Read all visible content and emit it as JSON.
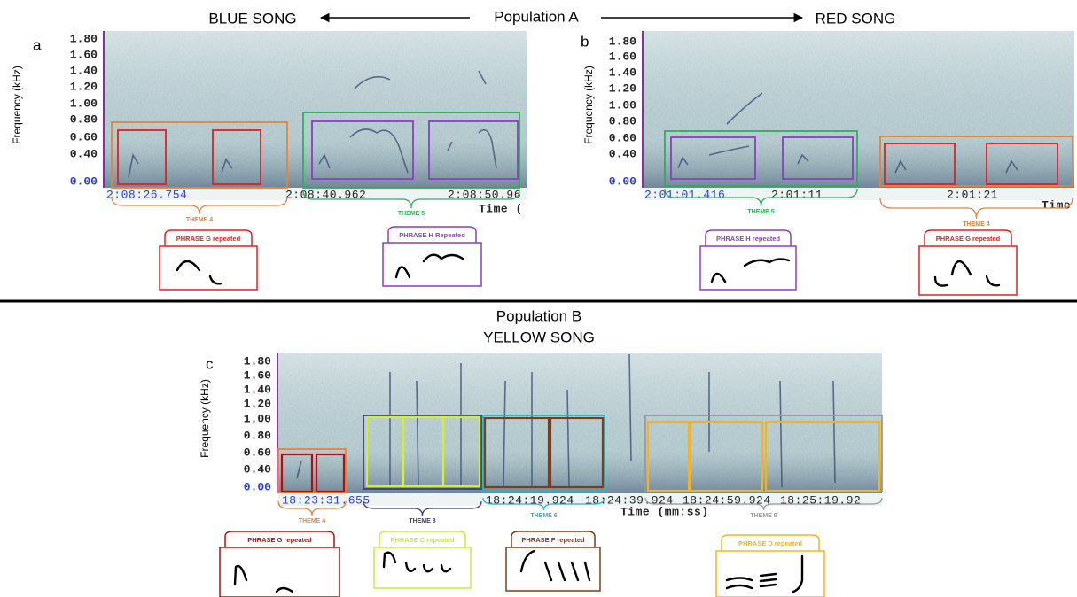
{
  "population_a": {
    "title": "Population A",
    "left_song": "BLUE SONG",
    "right_song": "RED SONG"
  },
  "population_b": {
    "title": "Population B",
    "song": "YELLOW SONG"
  },
  "y_axis": {
    "label": "Frequency (kHz)",
    "ticks": [
      "1.80",
      "1.60",
      "1.40",
      "1.20",
      "1.00",
      "0.80",
      "0.60",
      "0.40",
      "0.00"
    ]
  },
  "panels": [
    {
      "label": "a",
      "times": [
        "2:08:26.754",
        "2:08:40.962",
        "2:08:50.96"
      ],
      "axis_label": "Time (",
      "themes": [
        {
          "name": "THEME 4",
          "phrase": "PHRASE G repeated"
        },
        {
          "name": "THEME 5",
          "phrase": "PHRASE H Repeated"
        }
      ]
    },
    {
      "label": "b",
      "times": [
        "2:01:01.416",
        "2:01:11",
        "2:01:21"
      ],
      "axis_label": "Time",
      "themes": [
        {
          "name": "THEME 5",
          "phrase": "PHRASE H repeated"
        },
        {
          "name": "THEME 4",
          "phrase": "PHRASE G repeated"
        }
      ]
    },
    {
      "label": "c",
      "times": [
        "18:23:31.655",
        "18:24:19.924",
        "18:24:39.924",
        "18:24:59.924",
        "18:25:19.92"
      ],
      "axis_label": "Time (mm:ss)",
      "themes": [
        {
          "name": "THEME 4",
          "phrase": "PHRASE G repeated"
        },
        {
          "name": "THEME 8",
          "phrase": "PHRASE C repeated"
        },
        {
          "name": "THEME 6",
          "phrase": "PHRASE F repeated"
        },
        {
          "name": "THEME 9",
          "phrase": "PHRASE D repeated"
        }
      ]
    }
  ]
}
